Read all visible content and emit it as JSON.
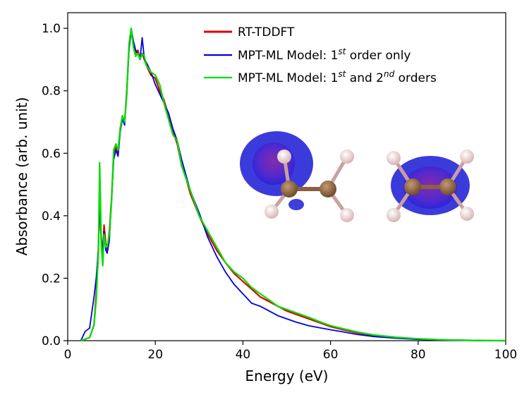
{
  "chart_data": {
    "type": "line",
    "xlabel": "Energy (eV)",
    "ylabel": "Absorbance (arb. unit)",
    "xlim": [
      0,
      100
    ],
    "ylim": [
      0,
      1.05
    ],
    "x_ticks": [
      "0",
      "20",
      "40",
      "60",
      "80",
      "100"
    ],
    "y_ticks": [
      "0.0",
      "0.2",
      "0.4",
      "0.6",
      "0.8",
      "1.0"
    ],
    "grid": false,
    "legend_position": "top-right",
    "legend": {
      "rt": "RT-TDDFT",
      "mpt1_prefix": "MPT-ML Model: 1",
      "mpt1_sup": "st",
      "mpt1_suffix": " order only",
      "mpt2_prefix": "MPT-ML Model: 1",
      "mpt2_sup1": "st",
      "mpt2_mid": " and 2",
      "mpt2_sup2": "nd",
      "mpt2_suffix": " orders"
    },
    "series": [
      {
        "name": "RT-TDDFT",
        "color": "#e00000",
        "x": [
          3,
          5,
          6,
          6.5,
          7,
          7.3,
          7.7,
          8,
          8.3,
          8.7,
          9,
          9.5,
          10,
          10.5,
          11,
          11.5,
          12,
          12.5,
          13,
          13.5,
          14,
          14.5,
          15,
          15.5,
          16,
          16.5,
          17,
          17.5,
          18,
          19,
          20,
          21,
          22,
          23,
          24,
          25,
          26,
          27,
          28,
          30,
          32,
          34,
          36,
          38,
          40,
          42,
          44,
          46,
          48,
          50,
          52,
          55,
          58,
          60,
          63,
          66,
          70,
          75,
          80,
          85,
          90,
          95,
          100
        ],
        "y": [
          0,
          0.01,
          0.05,
          0.15,
          0.3,
          0.45,
          0.3,
          0.27,
          0.37,
          0.31,
          0.29,
          0.35,
          0.45,
          0.6,
          0.62,
          0.6,
          0.68,
          0.72,
          0.7,
          0.8,
          0.94,
          0.99,
          0.95,
          0.92,
          0.93,
          0.9,
          0.92,
          0.9,
          0.88,
          0.85,
          0.84,
          0.8,
          0.77,
          0.72,
          0.67,
          0.63,
          0.56,
          0.52,
          0.47,
          0.4,
          0.34,
          0.29,
          0.25,
          0.215,
          0.19,
          0.165,
          0.14,
          0.125,
          0.11,
          0.095,
          0.085,
          0.07,
          0.055,
          0.045,
          0.035,
          0.025,
          0.017,
          0.01,
          0.006,
          0.003,
          0.0015,
          0.0005,
          0
        ]
      },
      {
        "name": "MPT-ML Model: 1st order only",
        "color": "#0000e0",
        "x": [
          3,
          4,
          5,
          6,
          6.5,
          7,
          7.3,
          7.7,
          8,
          8.3,
          8.7,
          9,
          9.5,
          10,
          10.5,
          11,
          11.5,
          12,
          12.5,
          13,
          13.5,
          14,
          14.5,
          15,
          15.5,
          16,
          16.5,
          17,
          17.5,
          18,
          19,
          20,
          21,
          22,
          23,
          24,
          25,
          26,
          27,
          28,
          30,
          32,
          34,
          36,
          38,
          40,
          42,
          44,
          46,
          48,
          50,
          52,
          55,
          58,
          60,
          63,
          66,
          70,
          75,
          80,
          85,
          90,
          95,
          100
        ],
        "y": [
          0,
          0.03,
          0.04,
          0.14,
          0.2,
          0.29,
          0.44,
          0.33,
          0.29,
          0.35,
          0.29,
          0.28,
          0.32,
          0.45,
          0.58,
          0.61,
          0.59,
          0.67,
          0.71,
          0.69,
          0.8,
          0.93,
          1.0,
          0.96,
          0.93,
          0.92,
          0.9,
          0.97,
          0.9,
          0.89,
          0.86,
          0.82,
          0.79,
          0.76,
          0.73,
          0.68,
          0.64,
          0.58,
          0.53,
          0.48,
          0.41,
          0.33,
          0.27,
          0.22,
          0.18,
          0.15,
          0.12,
          0.11,
          0.095,
          0.08,
          0.07,
          0.06,
          0.048,
          0.04,
          0.035,
          0.028,
          0.02,
          0.013,
          0.008,
          0.004,
          0.002,
          0.001,
          0.0003,
          0
        ]
      },
      {
        "name": "MPT-ML Model: 1st and 2nd orders",
        "color": "#00e000",
        "x": [
          3,
          5,
          6,
          6.5,
          7,
          7.3,
          7.7,
          8,
          8.3,
          8.7,
          9,
          9.5,
          10,
          10.5,
          11,
          11.5,
          12,
          12.5,
          13,
          13.5,
          14,
          14.5,
          15,
          15.5,
          16,
          16.5,
          17,
          17.5,
          18,
          19,
          20,
          21,
          22,
          23,
          24,
          25,
          26,
          27,
          28,
          30,
          32,
          34,
          36,
          38,
          40,
          42,
          44,
          46,
          48,
          50,
          52,
          55,
          58,
          60,
          63,
          66,
          70,
          75,
          80,
          85,
          90,
          95,
          100
        ],
        "y": [
          0,
          0.01,
          0.05,
          0.13,
          0.28,
          0.57,
          0.3,
          0.24,
          0.34,
          0.3,
          0.3,
          0.34,
          0.44,
          0.61,
          0.63,
          0.61,
          0.68,
          0.72,
          0.7,
          0.79,
          0.95,
          1.0,
          0.94,
          0.91,
          0.92,
          0.9,
          0.92,
          0.91,
          0.88,
          0.86,
          0.85,
          0.82,
          0.76,
          0.71,
          0.66,
          0.64,
          0.56,
          0.52,
          0.48,
          0.4,
          0.35,
          0.3,
          0.25,
          0.22,
          0.2,
          0.17,
          0.15,
          0.13,
          0.11,
          0.1,
          0.09,
          0.075,
          0.058,
          0.048,
          0.038,
          0.028,
          0.018,
          0.011,
          0.006,
          0.003,
          0.0015,
          0.0005,
          0
        ]
      }
    ]
  }
}
